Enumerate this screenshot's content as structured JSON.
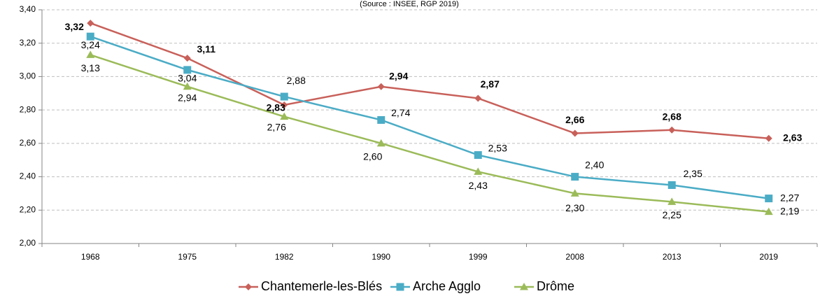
{
  "chart_data": {
    "type": "line",
    "subtitle": "(Source : INSEE, RGP 2019)",
    "categories": [
      "1968",
      "1975",
      "1982",
      "1990",
      "1999",
      "2008",
      "2013",
      "2019"
    ],
    "series": [
      {
        "name": "Chantemerle-les-Blés",
        "color": "#c8605a",
        "marker": "diamond",
        "values": [
          3.32,
          3.11,
          2.83,
          2.94,
          2.87,
          2.66,
          2.68,
          2.63
        ],
        "value_labels": [
          "3,32",
          "3,11",
          "2,83",
          "2,94",
          "2,87",
          "2,66",
          "2,68",
          "2,63"
        ]
      },
      {
        "name": "Arche Agglo",
        "color": "#4bacc6",
        "marker": "square",
        "values": [
          3.24,
          3.04,
          2.88,
          2.74,
          2.53,
          2.4,
          2.35,
          2.27
        ],
        "value_labels": [
          "3,24",
          "3,04",
          "2,88",
          "2,74",
          "2,53",
          "2,40",
          "2,35",
          "2,27"
        ]
      },
      {
        "name": "Drôme",
        "color": "#9bbb59",
        "marker": "triangle",
        "values": [
          3.13,
          2.94,
          2.76,
          2.6,
          2.43,
          2.3,
          2.25,
          2.19
        ],
        "value_labels": [
          "3,13",
          "2,94",
          "2,76",
          "2,60",
          "2,43",
          "2,30",
          "2,25",
          "2,19"
        ]
      }
    ],
    "ylim": [
      2.0,
      3.4
    ],
    "yticks": [
      {
        "value": 2.0,
        "label": "2,00"
      },
      {
        "value": 2.2,
        "label": "2,20"
      },
      {
        "value": 2.4,
        "label": "2,40"
      },
      {
        "value": 2.6,
        "label": "2,60"
      },
      {
        "value": 2.8,
        "label": "2,80"
      },
      {
        "value": 3.0,
        "label": "3,00"
      },
      {
        "value": 3.2,
        "label": "3,20"
      },
      {
        "value": 3.4,
        "label": "3,40"
      }
    ],
    "grid": true,
    "legend": "bottom"
  }
}
